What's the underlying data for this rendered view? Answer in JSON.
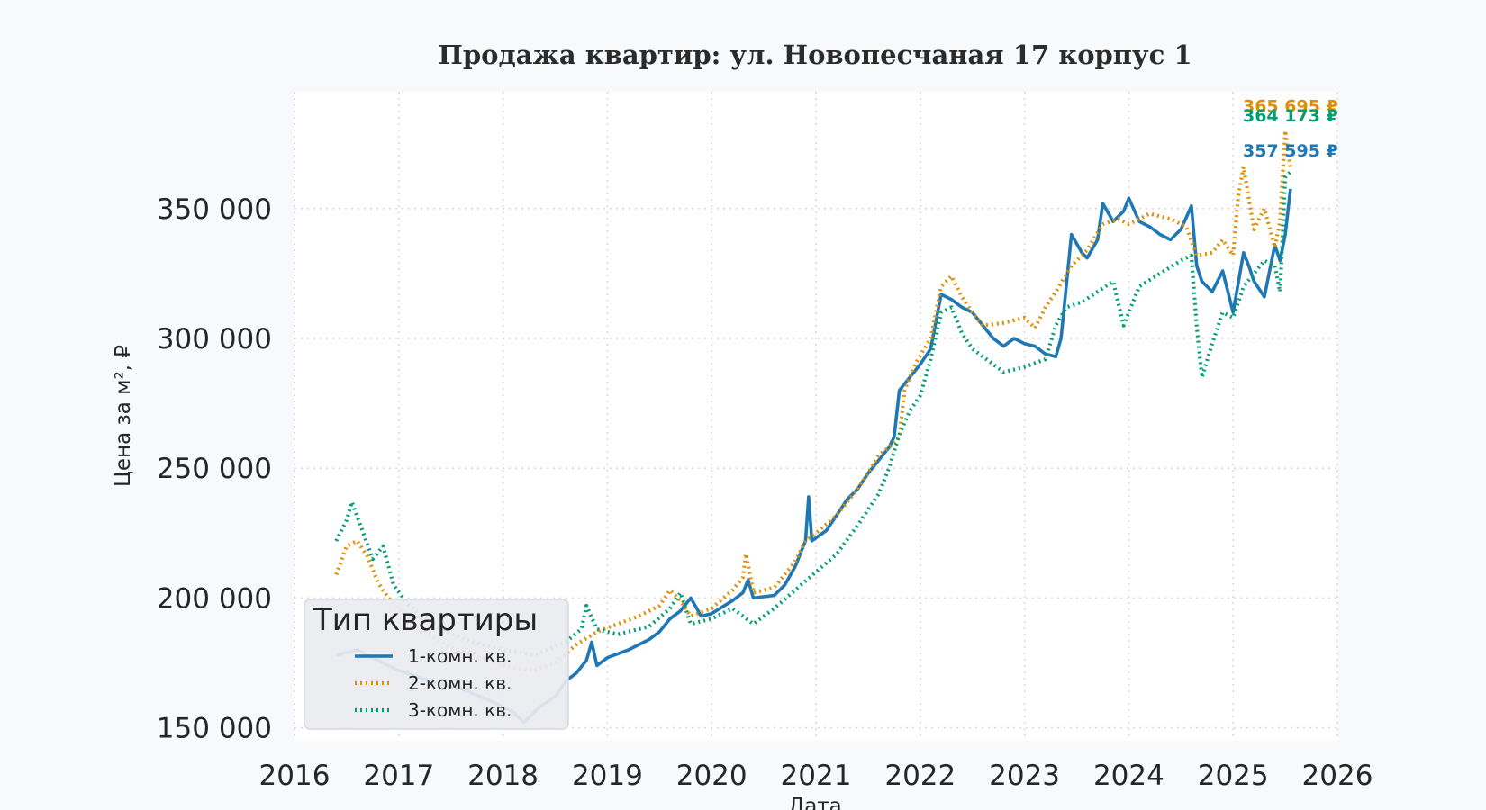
{
  "chart_data": {
    "type": "line",
    "title": "Продажа квартир: ул. Новопесчаная 17 корпус 1",
    "xlabel": "Дата",
    "ylabel": "Цена за м², ₽",
    "xlim": [
      2016,
      2026
    ],
    "ylim": [
      145000,
      395000
    ],
    "x_ticks": [
      2016,
      2017,
      2018,
      2019,
      2020,
      2021,
      2022,
      2023,
      2024,
      2025,
      2026
    ],
    "y_ticks": [
      150000,
      200000,
      250000,
      300000,
      350000
    ],
    "y_tick_labels": [
      "150 000",
      "200 000",
      "250 000",
      "300 000",
      "350 000"
    ],
    "grid": true,
    "legend": {
      "title": "Тип квартиры",
      "placement": "lower-left",
      "entries": [
        "1-комн. кв.",
        "2-комн. кв.",
        "3-комн. кв."
      ]
    },
    "series": [
      {
        "name": "1-комн. кв.",
        "color": "#1f77b4",
        "dash": "solid",
        "end_label": "357 595 ₽",
        "points": [
          [
            2016.4,
            178000
          ],
          [
            2016.6,
            180000
          ],
          [
            2016.8,
            176000
          ],
          [
            2017.0,
            172000
          ],
          [
            2017.3,
            168000
          ],
          [
            2017.6,
            165000
          ],
          [
            2017.9,
            160000
          ],
          [
            2018.1,
            156000
          ],
          [
            2018.2,
            152000
          ],
          [
            2018.35,
            158000
          ],
          [
            2018.5,
            162000
          ],
          [
            2018.6,
            168000
          ],
          [
            2018.7,
            171000
          ],
          [
            2018.8,
            176000
          ],
          [
            2018.85,
            183000
          ],
          [
            2018.9,
            174000
          ],
          [
            2019.0,
            177000
          ],
          [
            2019.2,
            180000
          ],
          [
            2019.4,
            184000
          ],
          [
            2019.5,
            187000
          ],
          [
            2019.6,
            192000
          ],
          [
            2019.7,
            195000
          ],
          [
            2019.8,
            200000
          ],
          [
            2019.9,
            193000
          ],
          [
            2020.0,
            194000
          ],
          [
            2020.2,
            199000
          ],
          [
            2020.3,
            202000
          ],
          [
            2020.35,
            207000
          ],
          [
            2020.4,
            200000
          ],
          [
            2020.6,
            201000
          ],
          [
            2020.7,
            205000
          ],
          [
            2020.8,
            212000
          ],
          [
            2020.9,
            222000
          ],
          [
            2020.93,
            239000
          ],
          [
            2020.96,
            222000
          ],
          [
            2021.1,
            226000
          ],
          [
            2021.2,
            232000
          ],
          [
            2021.3,
            238000
          ],
          [
            2021.4,
            242000
          ],
          [
            2021.5,
            248000
          ],
          [
            2021.6,
            253000
          ],
          [
            2021.7,
            258000
          ],
          [
            2021.75,
            262000
          ],
          [
            2021.8,
            280000
          ],
          [
            2021.9,
            285000
          ],
          [
            2022.0,
            290000
          ],
          [
            2022.1,
            296000
          ],
          [
            2022.2,
            317000
          ],
          [
            2022.3,
            315000
          ],
          [
            2022.4,
            312000
          ],
          [
            2022.5,
            310000
          ],
          [
            2022.6,
            305000
          ],
          [
            2022.7,
            300000
          ],
          [
            2022.8,
            297000
          ],
          [
            2022.9,
            300000
          ],
          [
            2023.0,
            298000
          ],
          [
            2023.1,
            297000
          ],
          [
            2023.2,
            294000
          ],
          [
            2023.3,
            293000
          ],
          [
            2023.35,
            300000
          ],
          [
            2023.45,
            340000
          ],
          [
            2023.55,
            333000
          ],
          [
            2023.6,
            331000
          ],
          [
            2023.7,
            338000
          ],
          [
            2023.75,
            352000
          ],
          [
            2023.85,
            345000
          ],
          [
            2023.95,
            349000
          ],
          [
            2024.0,
            354000
          ],
          [
            2024.1,
            345000
          ],
          [
            2024.2,
            343000
          ],
          [
            2024.3,
            340000
          ],
          [
            2024.4,
            338000
          ],
          [
            2024.5,
            342000
          ],
          [
            2024.6,
            351000
          ],
          [
            2024.65,
            328000
          ],
          [
            2024.7,
            322000
          ],
          [
            2024.8,
            318000
          ],
          [
            2024.9,
            326000
          ],
          [
            2025.0,
            310000
          ],
          [
            2025.1,
            333000
          ],
          [
            2025.15,
            328000
          ],
          [
            2025.2,
            322000
          ],
          [
            2025.3,
            316000
          ],
          [
            2025.4,
            336000
          ],
          [
            2025.45,
            330000
          ],
          [
            2025.5,
            340000
          ],
          [
            2025.55,
            357595
          ]
        ]
      },
      {
        "name": "2-комн. кв.",
        "color": "#de8f05",
        "dash": "dotted",
        "end_label": "365 695 ₽",
        "points": [
          [
            2016.4,
            209000
          ],
          [
            2016.5,
            220000
          ],
          [
            2016.6,
            222000
          ],
          [
            2016.7,
            216000
          ],
          [
            2016.8,
            206000
          ],
          [
            2016.9,
            200000
          ],
          [
            2017.0,
            196000
          ],
          [
            2017.2,
            188000
          ],
          [
            2017.5,
            181000
          ],
          [
            2017.8,
            177000
          ],
          [
            2018.0,
            174000
          ],
          [
            2018.3,
            172000
          ],
          [
            2018.5,
            175000
          ],
          [
            2018.7,
            182000
          ],
          [
            2018.9,
            187000
          ],
          [
            2019.1,
            190000
          ],
          [
            2019.3,
            193000
          ],
          [
            2019.5,
            197000
          ],
          [
            2019.6,
            203000
          ],
          [
            2019.7,
            199000
          ],
          [
            2019.8,
            193000
          ],
          [
            2020.0,
            196000
          ],
          [
            2020.2,
            203000
          ],
          [
            2020.3,
            208000
          ],
          [
            2020.33,
            217000
          ],
          [
            2020.4,
            202000
          ],
          [
            2020.6,
            204000
          ],
          [
            2020.8,
            214000
          ],
          [
            2020.9,
            222000
          ],
          [
            2021.0,
            225000
          ],
          [
            2021.2,
            232000
          ],
          [
            2021.4,
            242000
          ],
          [
            2021.5,
            248000
          ],
          [
            2021.6,
            255000
          ],
          [
            2021.7,
            258000
          ],
          [
            2021.8,
            262000
          ],
          [
            2021.85,
            280000
          ],
          [
            2021.95,
            290000
          ],
          [
            2022.1,
            300000
          ],
          [
            2022.2,
            320000
          ],
          [
            2022.3,
            324000
          ],
          [
            2022.4,
            316000
          ],
          [
            2022.5,
            310000
          ],
          [
            2022.6,
            305000
          ],
          [
            2022.8,
            306000
          ],
          [
            2023.0,
            308000
          ],
          [
            2023.1,
            304000
          ],
          [
            2023.2,
            312000
          ],
          [
            2023.3,
            318000
          ],
          [
            2023.45,
            328000
          ],
          [
            2023.6,
            334000
          ],
          [
            2023.75,
            344000
          ],
          [
            2023.9,
            346000
          ],
          [
            2024.0,
            344000
          ],
          [
            2024.2,
            348000
          ],
          [
            2024.4,
            346000
          ],
          [
            2024.55,
            343000
          ],
          [
            2024.65,
            332000
          ],
          [
            2024.8,
            333000
          ],
          [
            2024.9,
            338000
          ],
          [
            2025.0,
            332000
          ],
          [
            2025.05,
            355000
          ],
          [
            2025.1,
            366000
          ],
          [
            2025.2,
            342000
          ],
          [
            2025.3,
            350000
          ],
          [
            2025.4,
            335000
          ],
          [
            2025.45,
            345000
          ],
          [
            2025.5,
            380000
          ],
          [
            2025.55,
            365695
          ]
        ]
      },
      {
        "name": "3-комн. кв.",
        "color": "#029e73",
        "dash": "dotted",
        "end_label": "364 173 ₽",
        "points": [
          [
            2016.4,
            222000
          ],
          [
            2016.5,
            230000
          ],
          [
            2016.55,
            237000
          ],
          [
            2016.65,
            226000
          ],
          [
            2016.75,
            215000
          ],
          [
            2016.85,
            220000
          ],
          [
            2016.95,
            205000
          ],
          [
            2017.1,
            197000
          ],
          [
            2017.4,
            188000
          ],
          [
            2017.7,
            183000
          ],
          [
            2018.0,
            180000
          ],
          [
            2018.3,
            178000
          ],
          [
            2018.6,
            183000
          ],
          [
            2018.75,
            188000
          ],
          [
            2018.8,
            197000
          ],
          [
            2018.9,
            188000
          ],
          [
            2019.1,
            186000
          ],
          [
            2019.4,
            189000
          ],
          [
            2019.6,
            196000
          ],
          [
            2019.7,
            202000
          ],
          [
            2019.8,
            190000
          ],
          [
            2020.0,
            192000
          ],
          [
            2020.2,
            196000
          ],
          [
            2020.3,
            193000
          ],
          [
            2020.4,
            190000
          ],
          [
            2020.6,
            196000
          ],
          [
            2020.8,
            203000
          ],
          [
            2021.0,
            210000
          ],
          [
            2021.2,
            217000
          ],
          [
            2021.4,
            228000
          ],
          [
            2021.6,
            240000
          ],
          [
            2021.7,
            250000
          ],
          [
            2021.8,
            263000
          ],
          [
            2021.9,
            272000
          ],
          [
            2022.0,
            278000
          ],
          [
            2022.1,
            292000
          ],
          [
            2022.2,
            310000
          ],
          [
            2022.3,
            312000
          ],
          [
            2022.4,
            302000
          ],
          [
            2022.5,
            296000
          ],
          [
            2022.7,
            290000
          ],
          [
            2022.8,
            287000
          ],
          [
            2023.0,
            289000
          ],
          [
            2023.2,
            292000
          ],
          [
            2023.3,
            305000
          ],
          [
            2023.4,
            312000
          ],
          [
            2023.55,
            314000
          ],
          [
            2023.7,
            318000
          ],
          [
            2023.85,
            322000
          ],
          [
            2023.95,
            305000
          ],
          [
            2024.1,
            320000
          ],
          [
            2024.3,
            325000
          ],
          [
            2024.5,
            330000
          ],
          [
            2024.6,
            332000
          ],
          [
            2024.65,
            305000
          ],
          [
            2024.7,
            285000
          ],
          [
            2024.8,
            298000
          ],
          [
            2024.9,
            310000
          ],
          [
            2025.0,
            308000
          ],
          [
            2025.1,
            320000
          ],
          [
            2025.2,
            325000
          ],
          [
            2025.3,
            330000
          ],
          [
            2025.4,
            328000
          ],
          [
            2025.45,
            318000
          ],
          [
            2025.5,
            362000
          ],
          [
            2025.55,
            364173
          ]
        ]
      }
    ]
  }
}
